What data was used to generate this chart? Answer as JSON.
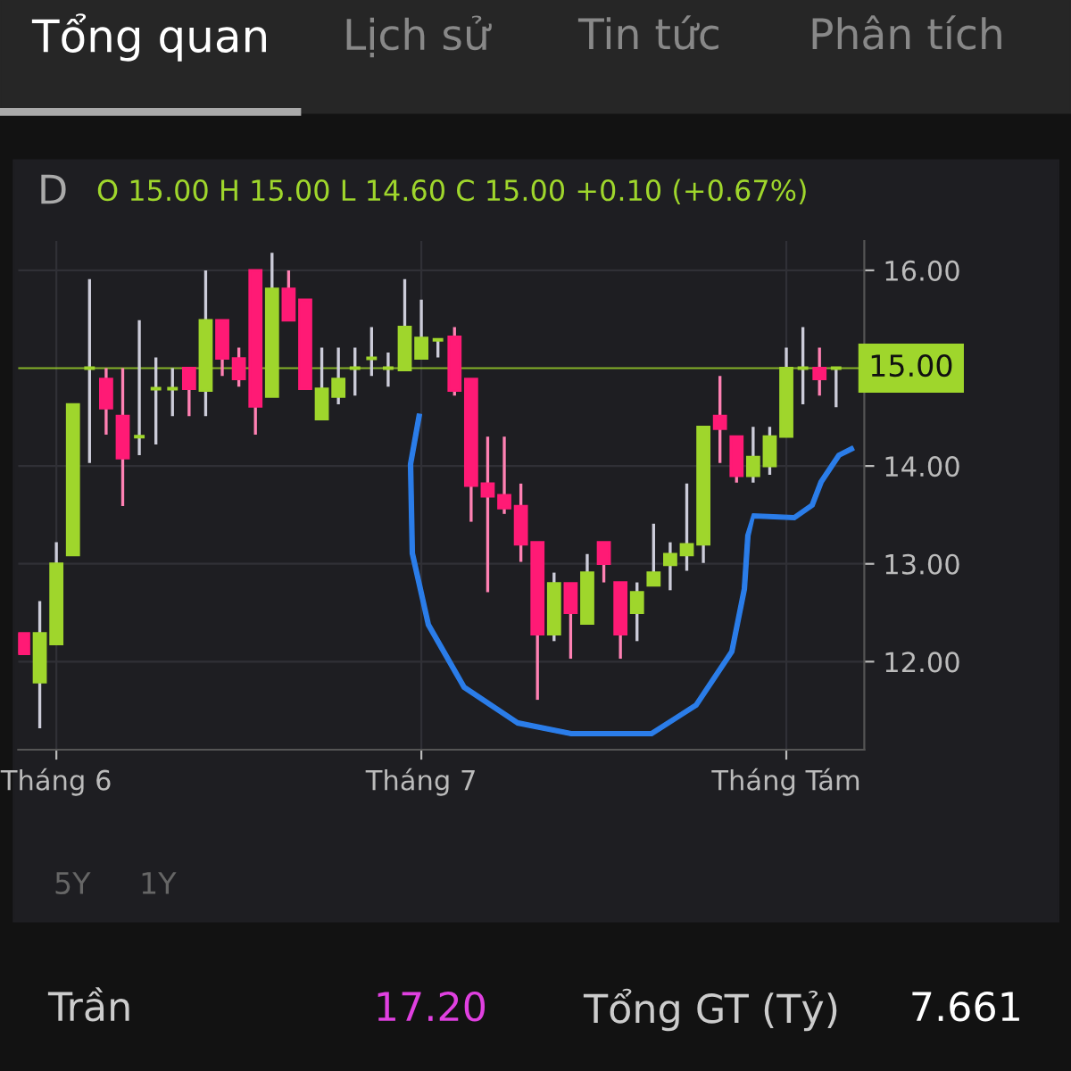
{
  "chart_data": {
    "type": "candlestick",
    "title": "D",
    "annotations": [
      "Tổng quan",
      "Lịch sử",
      "Tin tức",
      "Phân tích",
      "O 15.00 H 15.00 L 14.60 C 15.00 +0.10 (+0.67%)",
      "5Y",
      "1Y",
      "Trần",
      "17.20",
      "Tổng GT (Tỷ)",
      "7.661"
    ],
    "categories": [
      null,
      null,
      "Tháng 6",
      null,
      null,
      null,
      null,
      null,
      null,
      null,
      null,
      null,
      null,
      null,
      null,
      null,
      null,
      null,
      null,
      null,
      null,
      null,
      null,
      null,
      "Tháng 7",
      null,
      null,
      null,
      null,
      null,
      null,
      null,
      null,
      null,
      null,
      null,
      null,
      null,
      null,
      null,
      null,
      null,
      null,
      null,
      null,
      null,
      "Tháng Tám",
      null,
      null,
      null
    ],
    "ohlc": [
      [
        12.29,
        12.29,
        12.08,
        12.08
      ],
      [
        11.79,
        12.62,
        11.32,
        12.29
      ],
      [
        12.18,
        13.22,
        12.18,
        13.0
      ],
      [
        13.09,
        14.63,
        13.09,
        14.63
      ],
      [
        15.0,
        15.91,
        14.03,
        15.0
      ],
      [
        14.89,
        15.0,
        14.32,
        14.59
      ],
      [
        14.51,
        15.0,
        13.59,
        14.08
      ],
      [
        14.3,
        15.49,
        14.11,
        14.3
      ],
      [
        14.79,
        15.11,
        14.22,
        14.79
      ],
      [
        14.79,
        15.0,
        14.51,
        14.79
      ],
      [
        15.0,
        15.0,
        14.51,
        14.79
      ],
      [
        14.77,
        16.0,
        14.51,
        15.49
      ],
      [
        15.49,
        15.49,
        14.92,
        15.1
      ],
      [
        15.1,
        15.21,
        14.81,
        14.89
      ],
      [
        16.0,
        16.0,
        14.32,
        14.61
      ],
      [
        14.71,
        16.18,
        14.71,
        15.81
      ],
      [
        15.81,
        16.0,
        15.49,
        15.49
      ],
      [
        15.7,
        15.7,
        14.79,
        14.79
      ],
      [
        14.48,
        15.21,
        14.48,
        14.79
      ],
      [
        14.71,
        15.21,
        14.63,
        14.89
      ],
      [
        15.0,
        15.21,
        14.72,
        15.0
      ],
      [
        15.1,
        15.42,
        14.92,
        15.1
      ],
      [
        15.0,
        15.16,
        14.81,
        15.0
      ],
      [
        14.98,
        15.91,
        14.98,
        15.42
      ],
      [
        15.1,
        15.7,
        15.1,
        15.31
      ],
      [
        15.29,
        15.29,
        15.11,
        15.29
      ],
      [
        15.32,
        15.42,
        14.72,
        14.77
      ],
      [
        14.89,
        14.89,
        13.43,
        13.8
      ],
      [
        13.82,
        14.3,
        12.71,
        13.69
      ],
      [
        13.7,
        14.3,
        13.51,
        13.57
      ],
      [
        13.59,
        13.82,
        13.02,
        13.2
      ],
      [
        13.22,
        13.22,
        11.61,
        12.28
      ],
      [
        12.28,
        12.91,
        12.21,
        12.8
      ],
      [
        12.8,
        12.8,
        12.03,
        12.5
      ],
      [
        12.39,
        13.1,
        12.39,
        12.91
      ],
      [
        13.22,
        13.22,
        12.81,
        13.0
      ],
      [
        12.81,
        12.81,
        12.03,
        12.28
      ],
      [
        12.5,
        12.81,
        12.21,
        12.71
      ],
      [
        12.78,
        13.41,
        12.78,
        12.91
      ],
      [
        12.99,
        13.22,
        12.73,
        13.1
      ],
      [
        13.09,
        13.82,
        12.93,
        13.2
      ],
      [
        13.2,
        14.4,
        13.01,
        14.4
      ],
      [
        14.51,
        14.92,
        14.03,
        14.38
      ],
      [
        14.3,
        14.3,
        13.83,
        13.9
      ],
      [
        13.9,
        14.4,
        13.83,
        14.09
      ],
      [
        14.0,
        14.4,
        13.91,
        14.3
      ],
      [
        14.3,
        15.21,
        14.3,
        15.0
      ],
      [
        15.0,
        15.42,
        14.63,
        15.0
      ],
      [
        15.0,
        15.21,
        14.72,
        14.89
      ],
      [
        15.0,
        15.0,
        14.6,
        15.0
      ]
    ],
    "colors": [
      "#ff1a75",
      "#9fd62c",
      "#9fd62c",
      "#9fd62c",
      "#9fd62c",
      "#ff1a75",
      "#ff1a75",
      "#9fd62c",
      "#9fd62c",
      "#9fd62c",
      "#ff1a75",
      "#9fd62c",
      "#ff1a75",
      "#ff1a75",
      "#ff1a75",
      "#9fd62c",
      "#ff1a75",
      "#ff1a75",
      "#9fd62c",
      "#9fd62c",
      "#9fd62c",
      "#9fd62c",
      "#9fd62c",
      "#9fd62c",
      "#9fd62c",
      "#9fd62c",
      "#ff1a75",
      "#ff1a75",
      "#ff1a75",
      "#ff1a75",
      "#ff1a75",
      "#ff1a75",
      "#9fd62c",
      "#ff1a75",
      "#9fd62c",
      "#ff1a75",
      "#ff1a75",
      "#9fd62c",
      "#9fd62c",
      "#9fd62c",
      "#9fd62c",
      "#9fd62c",
      "#ff1a75",
      "#ff1a75",
      "#9fd62c",
      "#9fd62c",
      "#9fd62c",
      "#9fd62c",
      "#ff1a75",
      "#9fd62c"
    ],
    "ylim": [
      11.1,
      16.3
    ],
    "yticks": [
      {
        "value": 12,
        "label": "12.00"
      },
      {
        "value": 13,
        "label": "13.00"
      },
      {
        "value": 14,
        "label": "14.00"
      },
      {
        "value": 16,
        "label": "16.00"
      }
    ],
    "ref_lines": [
      {
        "axis": "y",
        "value": 15.0,
        "label": "15.00",
        "color": "#9fd62c"
      }
    ],
    "grid": true
  }
}
